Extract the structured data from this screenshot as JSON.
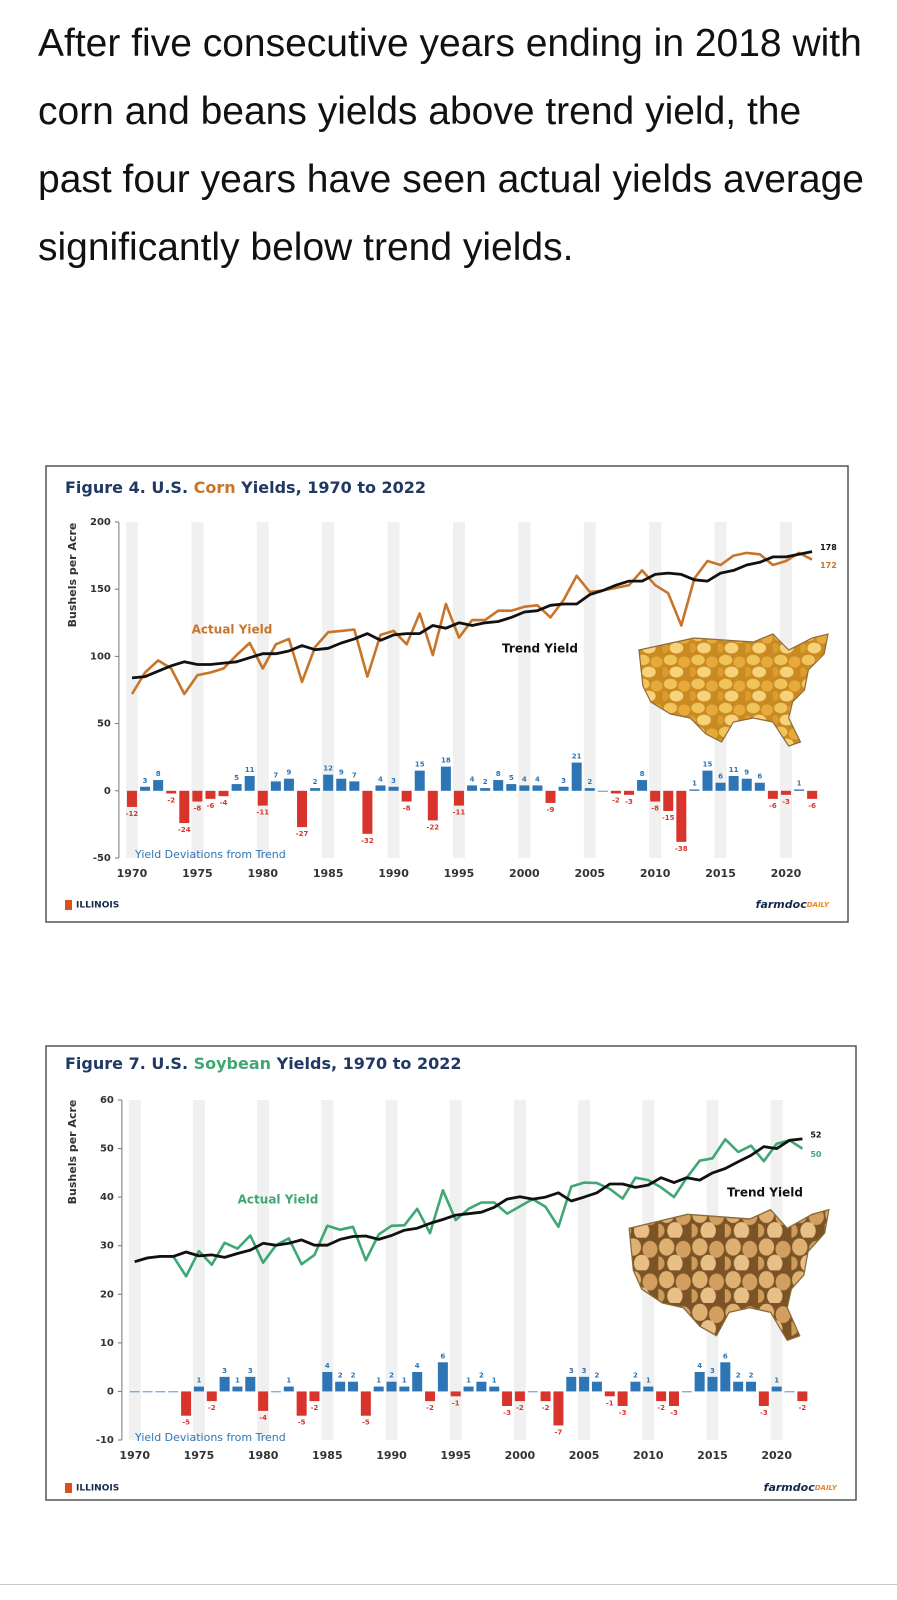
{
  "text": "After five consecutive years ending in 2018 with corn and beans yields above trend yield, the past four years have seen actual yields average significantly below trend yields.",
  "chart_data": [
    {
      "type": "line",
      "title": [
        "Figure 4. U.S. ",
        "Corn",
        " Yields, 1970 to 2022"
      ],
      "ylabel": "Bushels per Acre",
      "x": [
        1970,
        1971,
        1972,
        1973,
        1974,
        1975,
        1976,
        1977,
        1978,
        1979,
        1980,
        1981,
        1982,
        1983,
        1984,
        1985,
        1986,
        1987,
        1988,
        1989,
        1990,
        1991,
        1992,
        1993,
        1994,
        1995,
        1996,
        1997,
        1998,
        1999,
        2000,
        2001,
        2002,
        2003,
        2004,
        2005,
        2006,
        2007,
        2008,
        2009,
        2010,
        2011,
        2012,
        2013,
        2014,
        2015,
        2016,
        2017,
        2018,
        2019,
        2020,
        2021,
        2022
      ],
      "xlim": [
        1969,
        2023
      ],
      "xticks": [
        1970,
        1975,
        1980,
        1985,
        1990,
        1995,
        2000,
        2005,
        2010,
        2015,
        2020
      ],
      "ylim": [
        -50,
        200
      ],
      "yticks": [
        -50,
        0,
        50,
        100,
        150,
        200
      ],
      "series": [
        {
          "name": "Actual Yield",
          "color": "#c8752a",
          "values": [
            72,
            88,
            97,
            91,
            72,
            86,
            88,
            91,
            101,
            110,
            91,
            109,
            113,
            81,
            107,
            118,
            119,
            120,
            85,
            116,
            119,
            109,
            132,
            101,
            139,
            114,
            127,
            127,
            134,
            134,
            137,
            138,
            129,
            142,
            160,
            148,
            149,
            151,
            153,
            164,
            153,
            147,
            123,
            158,
            171,
            168,
            175,
            177,
            176,
            168,
            171,
            177,
            172
          ]
        },
        {
          "name": "Trend Yield",
          "color": "#111111",
          "values": [
            84,
            85,
            89,
            93,
            96,
            94,
            94,
            95,
            96,
            99,
            102,
            102,
            104,
            108,
            105,
            106,
            110,
            113,
            117,
            112,
            116,
            117,
            117,
            123,
            121,
            125,
            123,
            125,
            126,
            129,
            133,
            134,
            138,
            139,
            139,
            146,
            149,
            153,
            156,
            156,
            161,
            162,
            161,
            157,
            156,
            162,
            164,
            168,
            170,
            174,
            174,
            176,
            178
          ]
        }
      ],
      "deviations": {
        "name": "Yield Deviations from Trend",
        "positive_color": "#2e75b6",
        "negative_color": "#d9342b",
        "values": [
          -12,
          3,
          8,
          -2,
          -24,
          -8,
          -6,
          -4,
          5,
          11,
          -11,
          7,
          9,
          -27,
          2,
          12,
          9,
          7,
          -32,
          4,
          3,
          -8,
          15,
          -22,
          18,
          -11,
          4,
          2,
          8,
          5,
          4,
          4,
          -9,
          3,
          21,
          2,
          0,
          -2,
          -3,
          8,
          -8,
          -15,
          -38,
          1,
          15,
          6,
          11,
          9,
          6,
          -6,
          -3,
          1,
          -6
        ],
        "value_labels": [
          "-12",
          "3",
          "8",
          "-2",
          "-24",
          "-8",
          "-6",
          "-4",
          "5",
          "11",
          "-11",
          "7",
          "9",
          "-27",
          "2",
          "12",
          "9",
          "7",
          "-32",
          "4",
          "3",
          "-8",
          "15",
          "-22",
          "18",
          "-11",
          "4",
          "2",
          "8",
          "5",
          "4",
          "4",
          "-9",
          "3",
          "21",
          "2",
          null,
          "-2",
          "-3",
          "8",
          "-8",
          "-15",
          "-38",
          "1",
          "15",
          "6",
          "11",
          "9",
          "6",
          "-6",
          "-3",
          "1",
          "-6"
        ]
      },
      "footer": {
        "left": "ILLINOIS",
        "right": [
          "farmdoc",
          "DAILY"
        ]
      }
    },
    {
      "type": "line",
      "title": [
        "Figure 7. U.S. ",
        "Soybean",
        " Yields, 1970 to 2022"
      ],
      "ylabel": "Bushels per Acre",
      "x": [
        1970,
        1971,
        1972,
        1973,
        1974,
        1975,
        1976,
        1977,
        1978,
        1979,
        1980,
        1981,
        1982,
        1983,
        1984,
        1985,
        1986,
        1987,
        1988,
        1989,
        1990,
        1991,
        1992,
        1993,
        1994,
        1995,
        1996,
        1997,
        1998,
        1999,
        2000,
        2001,
        2002,
        2003,
        2004,
        2005,
        2006,
        2007,
        2008,
        2009,
        2010,
        2011,
        2012,
        2013,
        2014,
        2015,
        2016,
        2017,
        2018,
        2019,
        2020,
        2021,
        2022
      ],
      "xlim": [
        1969,
        2023
      ],
      "xticks": [
        1970,
        1975,
        1980,
        1985,
        1990,
        1995,
        2000,
        2005,
        2010,
        2015,
        2020
      ],
      "ylim": [
        -10,
        60
      ],
      "yticks": [
        -10,
        0,
        10,
        20,
        30,
        40,
        50,
        60
      ],
      "series": [
        {
          "name": "Actual Yield",
          "color": "#3fa774",
          "values": [
            26.7,
            27.5,
            27.8,
            27.8,
            23.7,
            28.9,
            26.1,
            30.6,
            29.4,
            32.1,
            26.5,
            30.1,
            31.5,
            26.2,
            28.1,
            34.1,
            33.3,
            33.9,
            27,
            32.3,
            34.1,
            34.2,
            37.6,
            32.6,
            41.4,
            35.3,
            37.6,
            38.9,
            38.9,
            36.6,
            38.1,
            39.6,
            38,
            33.9,
            42.2,
            43,
            42.9,
            41.7,
            39.7,
            44,
            43.5,
            42,
            40,
            44,
            47.5,
            48,
            51.9,
            49.3,
            50.6,
            47.4,
            51,
            51.7,
            50
          ]
        },
        {
          "name": "Trend Yield",
          "color": "#111111",
          "values": [
            26.7,
            27.5,
            27.8,
            27.8,
            28.7,
            27.9,
            28.1,
            27.6,
            28.4,
            29.1,
            30.5,
            30.1,
            30.5,
            31.2,
            30.1,
            30.1,
            31.3,
            31.9,
            32,
            31.3,
            32.1,
            33.2,
            33.6,
            34.6,
            35.4,
            36.3,
            36.6,
            36.9,
            37.9,
            39.6,
            40.1,
            39.6,
            40,
            40.9,
            39.2,
            40,
            40.9,
            42.7,
            42.7,
            42,
            42.5,
            44,
            43,
            44,
            43.5,
            45,
            45.9,
            47.3,
            48.6,
            50.4,
            50,
            51.7,
            52
          ]
        }
      ],
      "deviations": {
        "name": "Yield Deviations from Trend",
        "positive_color": "#2e75b6",
        "negative_color": "#d9342b",
        "values": [
          0,
          0,
          0,
          0,
          -5,
          1,
          -2,
          3,
          1,
          3,
          -4,
          0,
          1,
          -5,
          -2,
          4,
          2,
          2,
          -5,
          1,
          2,
          1,
          4,
          -2,
          6,
          -1,
          1,
          2,
          1,
          -3,
          -2,
          0,
          -2,
          -7,
          3,
          3,
          2,
          -1,
          -3,
          2,
          1,
          -2,
          -3,
          0,
          4,
          3,
          6,
          2,
          2,
          -3,
          1,
          0,
          -2
        ],
        "value_labels": [
          null,
          null,
          null,
          null,
          "-5",
          "1",
          "-2",
          "3",
          "1",
          "3",
          "-4",
          null,
          "1",
          "-5",
          "-2",
          "4",
          "2",
          "2",
          "-5",
          "1",
          "2",
          "1",
          "4",
          "-2",
          "6",
          "-1",
          "1",
          "2",
          "1",
          "-3",
          "-2",
          null,
          "-2",
          "-7",
          "3",
          "3",
          "2",
          "-1",
          "-3",
          "2",
          "1",
          "-2",
          "-3",
          null,
          "4",
          "3",
          "6",
          "2",
          "2",
          "-3",
          "1",
          null,
          "-2"
        ]
      },
      "footer": {
        "left": "ILLINOIS",
        "right": [
          "farmdoc",
          "DAILY"
        ]
      }
    }
  ]
}
